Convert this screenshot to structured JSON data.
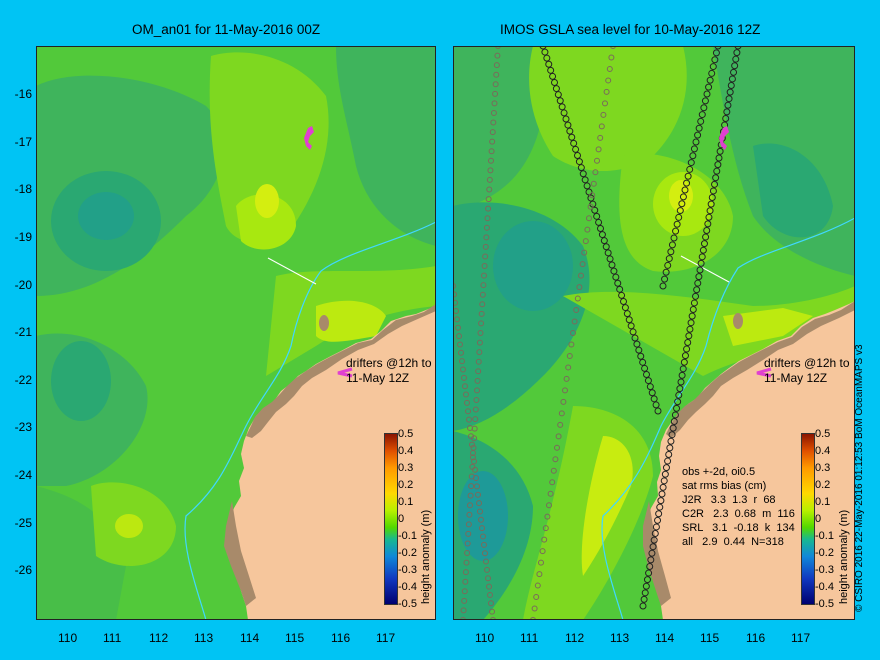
{
  "titles": {
    "left": "OM_an01 for 11-May-2016 00Z",
    "right": "IMOS GSLA sea level  for 10-May-2016 12Z"
  },
  "axes": {
    "y_labels": [
      "-16",
      "-17",
      "-18",
      "-19",
      "-20",
      "-21",
      "-22",
      "-23",
      "-24",
      "-25",
      "-26"
    ],
    "x_labels": [
      "110",
      "111",
      "112",
      "113",
      "114",
      "115",
      "116",
      "117"
    ]
  },
  "colorbar": {
    "label": "height anomaly (m)",
    "ticks": [
      "0.5",
      "0.4",
      "0.3",
      "0.2",
      "0.1",
      "0",
      "-0.1",
      "-0.2",
      "-0.3",
      "-0.4",
      "-0.5"
    ]
  },
  "drifters_label": [
    "drifters @12h to",
    "11-May 12Z"
  ],
  "stats": {
    "header": [
      "obs +-2d, oi0.5",
      "sat rms bias (cm)"
    ],
    "rows": [
      "J2R   3.3  1.3  r  68",
      "C2R   2.3  0.68  m  116",
      "SRL   3.1  -0.18  k  134",
      "all   2.9  0.44  N=318"
    ]
  },
  "credit": "© CSIRO 2016   22-May-2016 01:12:53 BoM OceanMAPS v3",
  "colors": {
    "background": "#00c4f4",
    "land": "#f6c69c",
    "ocean_base": "#4ec83a"
  }
}
